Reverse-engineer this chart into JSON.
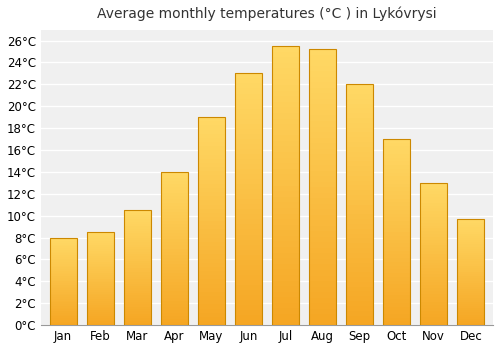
{
  "title": "Average monthly temperatures (°C ) in Lykóvrysi",
  "months": [
    "Jan",
    "Feb",
    "Mar",
    "Apr",
    "May",
    "Jun",
    "Jul",
    "Aug",
    "Sep",
    "Oct",
    "Nov",
    "Dec"
  ],
  "values": [
    8.0,
    8.5,
    10.5,
    14.0,
    19.0,
    23.0,
    25.5,
    25.2,
    22.0,
    17.0,
    13.0,
    9.7
  ],
  "bar_color_bottom": "#F5A623",
  "bar_color_top": "#FFD966",
  "bar_edge_color": "#CC8800",
  "ylim": [
    0,
    27
  ],
  "ytick_step": 2,
  "plot_bg_color": "#f0f0f0",
  "figure_bg_color": "#ffffff",
  "grid_color": "#ffffff",
  "title_fontsize": 10,
  "tick_fontsize": 8.5,
  "bar_width": 0.72
}
